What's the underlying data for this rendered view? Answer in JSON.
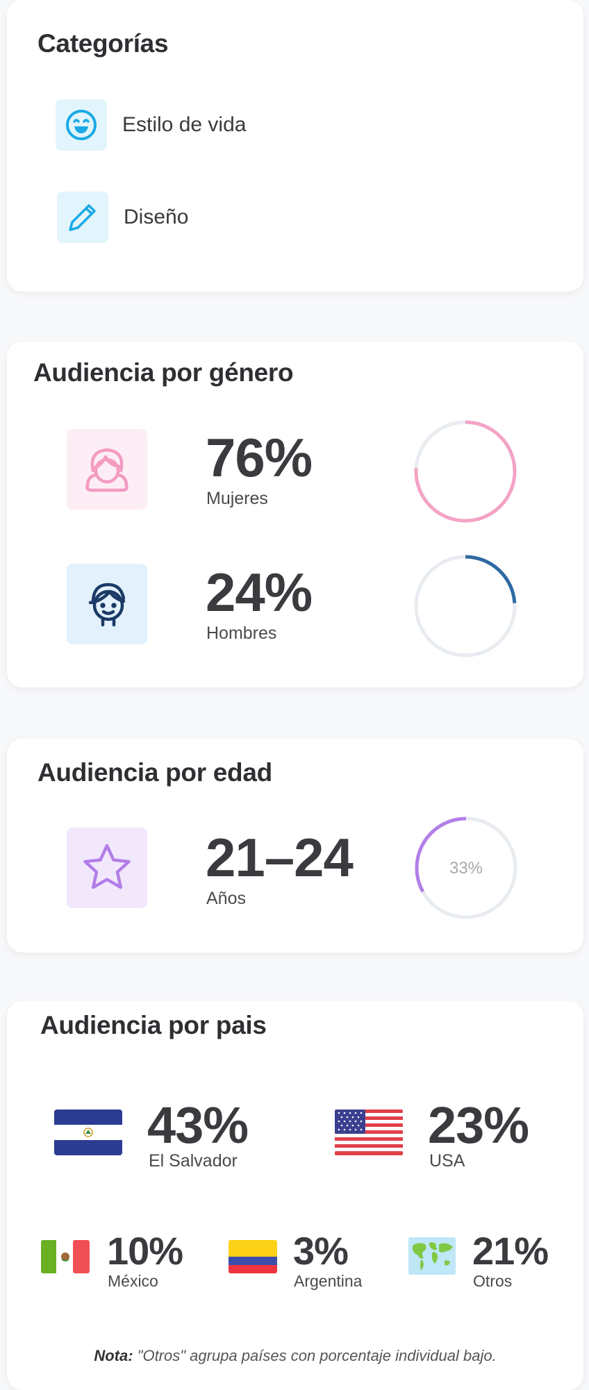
{
  "categories": {
    "title": "Categorías",
    "items": [
      {
        "label": "Estilo de vida",
        "icon": "smile-icon"
      },
      {
        "label": "Diseño",
        "icon": "pencil-icon"
      }
    ]
  },
  "gender": {
    "title": "Audiencia por género",
    "rows": [
      {
        "value": "76%",
        "label": "Mujeres",
        "percent": 76,
        "color": "#f4a3c5",
        "icon": "woman-icon"
      },
      {
        "value": "24%",
        "label": "Hombres",
        "percent": 24,
        "color": "#2f6aa3",
        "icon": "man-icon"
      }
    ]
  },
  "age": {
    "title": "Audiencia por edad",
    "value": "21–24",
    "label": "Años",
    "percent": 33,
    "percent_label": "33%",
    "color": "#b37ee8",
    "icon": "star-icon"
  },
  "country": {
    "title": "Audiencia por pais",
    "items": [
      {
        "value": "43%",
        "label": "El Salvador",
        "flag": "el-salvador-flag"
      },
      {
        "value": "23%",
        "label": "USA",
        "flag": "usa-flag"
      },
      {
        "value": "10%",
        "label": "México",
        "flag": "mexico-flag"
      },
      {
        "value": "3%",
        "label": "Argentina",
        "flag": "colombia-flag"
      },
      {
        "value": "21%",
        "label": "Otros",
        "flag": "world-map-icon"
      }
    ],
    "note_bold": "Nota:",
    "note_text": " \"Otros\" agrupa países con porcentaje individual bajo."
  },
  "colors": {
    "ring_track": "#e8ecf0",
    "woman_bg": "#fdeef5",
    "man_bg": "#e3f1fc",
    "star_bg": "#f2e8fc",
    "category_bg": "#e2f5fc"
  }
}
